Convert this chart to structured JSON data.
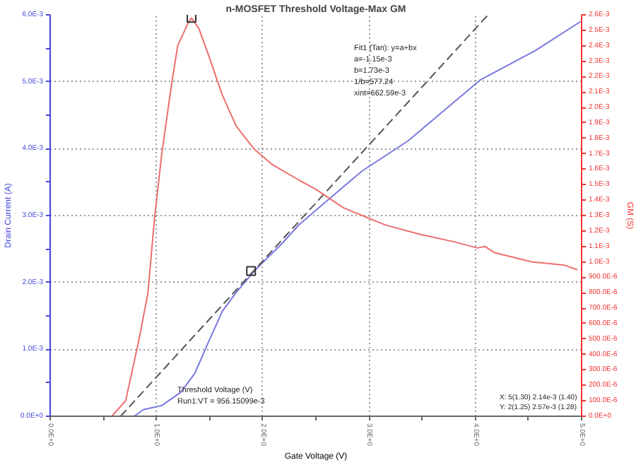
{
  "chart_data": {
    "type": "line",
    "title": "n-MOSFET Threshold Voltage-Max GM",
    "xlabel": "Gate Voltage (V)",
    "ylabel": "Drain Current (A)",
    "y2label": "GM (S)",
    "series": [
      {
        "color": "#7878e0",
        "x": [
          0,
          0.79,
          0.88,
          1.05,
          1.23,
          1.36,
          1.49,
          1.62,
          1.75,
          1.92,
          2.18,
          2.34,
          2.5,
          2.93,
          3.37,
          4.05,
          4.57,
          4.99
        ],
        "values": [
          0,
          0,
          0.0001,
          0.00016,
          0.00036,
          0.00064,
          0.00111,
          0.00157,
          0.00185,
          0.00217,
          0.00258,
          0.00286,
          0.00308,
          0.00366,
          0.00412,
          0.00503,
          0.00547,
          0.0059
        ]
      },
      {
        "color": "#555555",
        "line_style": "dashed",
        "x": [
          0.6626,
          4.12
        ],
        "values": [
          0,
          0.006
        ]
      },
      {
        "color": "#ee6e6e",
        "axis": "y2",
        "x": [
          0,
          0.4,
          0.58,
          0.71,
          0.84,
          0.92,
          0.98,
          1.05,
          1.14,
          1.2,
          1.3,
          1.33,
          1.4,
          1.49,
          1.62,
          1.75,
          1.92,
          2.09,
          2.34,
          2.5,
          2.76,
          3.15,
          3.47,
          3.8,
          4.02,
          4.09,
          4.18,
          4.53,
          4.83,
          4.96
        ],
        "values": [
          0,
          0,
          0,
          0.0001,
          0.00051,
          0.0008,
          0.00127,
          0.0017,
          0.00214,
          0.0024,
          0.00255,
          0.00258,
          0.00251,
          0.00234,
          0.00208,
          0.00188,
          0.00173,
          0.00163,
          0.00153,
          0.00147,
          0.00135,
          0.00124,
          0.00118,
          0.00113,
          0.00109,
          0.0011,
          0.00106,
          0.001,
          0.00098,
          0.00095
        ]
      },
      {
        "type": "scatter",
        "marker": "square",
        "color": "#333333",
        "axis": "y2",
        "x": [
          1.33
        ],
        "values": [
          0.00258
        ]
      },
      {
        "type": "scatter",
        "marker": "square",
        "color": "#333333",
        "x": [
          1.89
        ],
        "values": [
          0.00217
        ]
      }
    ],
    "xlim": [
      0,
      5
    ],
    "ylim": [
      0,
      0.006
    ],
    "y2lim": [
      0,
      0.0026
    ],
    "xticks": [
      {
        "value": 0,
        "label": "0.0E+0"
      },
      {
        "value": 0.5,
        "label": null
      },
      {
        "value": 1,
        "label": "1.0E+0"
      },
      {
        "value": 1.5,
        "label": null
      },
      {
        "value": 2,
        "label": "2.0E+0"
      },
      {
        "value": 2.5,
        "label": null
      },
      {
        "value": 3,
        "label": "3.0E+0"
      },
      {
        "value": 3.5,
        "label": null
      },
      {
        "value": 4,
        "label": "4.0E+0"
      },
      {
        "value": 4.5,
        "label": null
      },
      {
        "value": 5,
        "label": "5.0E+0"
      }
    ],
    "yticks": [
      {
        "value": 0,
        "label": "0.0E+0"
      },
      {
        "value": 0.0005,
        "label": null
      },
      {
        "value": 0.001,
        "label": "1.0E-3"
      },
      {
        "value": 0.0015,
        "label": null
      },
      {
        "value": 0.002,
        "label": "2.0E-3"
      },
      {
        "value": 0.0025,
        "label": null
      },
      {
        "value": 0.003,
        "label": "3.0E-3"
      },
      {
        "value": 0.0035,
        "label": null
      },
      {
        "value": 0.004,
        "label": "4.0E-3"
      },
      {
        "value": 0.0045,
        "label": null
      },
      {
        "value": 0.005,
        "label": "5.0E-3"
      },
      {
        "value": 0.0055,
        "label": null
      },
      {
        "value": 0.006,
        "label": "6.0E-3"
      }
    ],
    "y2ticks": [
      {
        "value": 0,
        "label": "0.0E+0"
      },
      {
        "value": 0.0001,
        "label": "100.0E-6"
      },
      {
        "value": 0.0002,
        "label": "200.0E-6"
      },
      {
        "value": 0.0003,
        "label": "300.0E-6"
      },
      {
        "value": 0.0004,
        "label": "400.0E-6"
      },
      {
        "value": 0.0005,
        "label": "500.0E-6"
      },
      {
        "value": 0.0006,
        "label": "600.0E-6"
      },
      {
        "value": 0.0007,
        "label": "700.0E-6"
      },
      {
        "value": 0.0008,
        "label": "800.0E-6"
      },
      {
        "value": 0.0009,
        "label": "900.0E-6"
      },
      {
        "value": 0.001,
        "label": "1.0E-3"
      },
      {
        "value": 0.0011,
        "label": "1.1E-3"
      },
      {
        "value": 0.0012,
        "label": "1.2E-3"
      },
      {
        "value": 0.0013,
        "label": "1.3E-3"
      },
      {
        "value": 0.0014,
        "label": "1.4E-3"
      },
      {
        "value": 0.0015,
        "label": "1.5E-3"
      },
      {
        "value": 0.0016,
        "label": "1.6E-3"
      },
      {
        "value": 0.0017,
        "label": "1.7E-3"
      },
      {
        "value": 0.0018,
        "label": "1.8E-3"
      },
      {
        "value": 0.0019,
        "label": "1.9E-3"
      },
      {
        "value": 0.002,
        "label": "2.0E-3"
      },
      {
        "value": 0.0021,
        "label": "2.1E-3"
      },
      {
        "value": 0.0022,
        "label": "2.2E-3"
      },
      {
        "value": 0.0023,
        "label": "2.3E-3"
      },
      {
        "value": 0.0024,
        "label": "2.4E-3"
      },
      {
        "value": 0.0025,
        "label": "2.5E-3"
      },
      {
        "value": 0.0026,
        "label": "2.6E-3"
      }
    ],
    "grid": true,
    "line_style": "solid",
    "marker": "none",
    "annotations": [
      "Fit1 (Tan): y=a+bx",
      "a=-1.15e-3",
      "b=1.73e-3",
      "1/b=577.24",
      "xint=662.59e-3",
      "Threshold Voltage (V)",
      "Run1:VT = 956.15099e-3",
      "X: 5(1.30) 2.14e-3 (1.40)",
      "Y: 2(1.25) 2.57e-3 (1.28)"
    ]
  }
}
